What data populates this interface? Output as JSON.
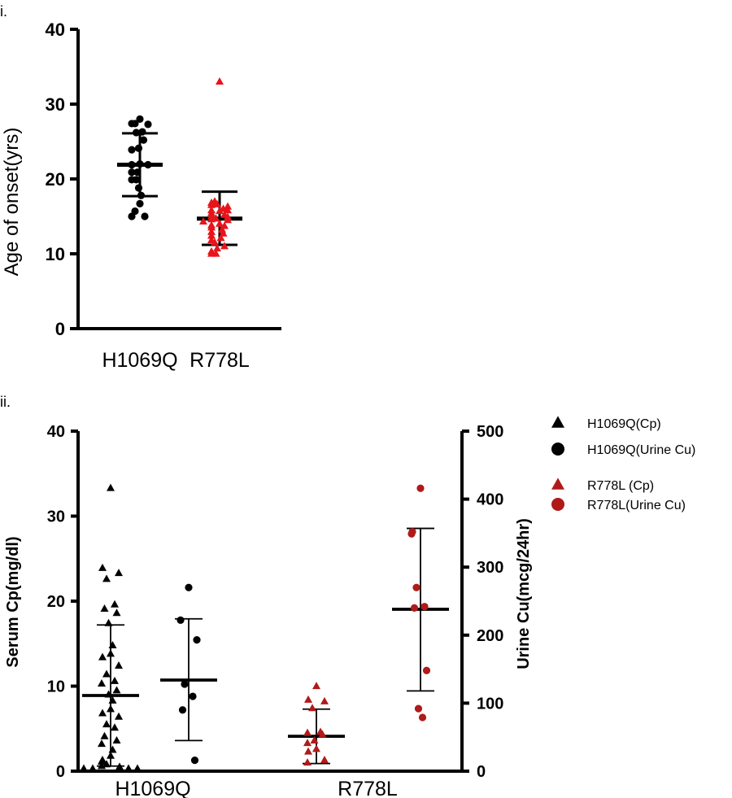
{
  "chart_data": [
    {
      "panel_label": "i.",
      "type": "scatter",
      "xlabel": "",
      "ylabel": "Age of onset(yrs)",
      "ylim": [
        0,
        40
      ],
      "yticks": [
        "0",
        "10",
        "20",
        "30",
        "40"
      ],
      "categories": [
        "H1069Q",
        "R778L"
      ],
      "grid": false,
      "series": [
        {
          "category": "H1069Q",
          "marker": "circle",
          "color": "#000000",
          "values": [
            28,
            27.4,
            27.4,
            27.3,
            26.3,
            26.2,
            25.2,
            24.1,
            23.9,
            22.0,
            21.9,
            21.9,
            20.9,
            20.9,
            19.9,
            19.9,
            18.8,
            17.8,
            16.7,
            15.7,
            15.0,
            15.0
          ],
          "mean": 21.9,
          "sd_low": 17.7,
          "sd_high": 26.1
        },
        {
          "category": "R778L",
          "marker": "triangle",
          "color": "#e8141b",
          "values": [
            33,
            17.0,
            16.8,
            16.6,
            16.5,
            16.3,
            16.0,
            15.8,
            15.8,
            15.7,
            15.4,
            15.2,
            15.0,
            14.9,
            14.7,
            14.6,
            14.5,
            14.3,
            14.0,
            13.8,
            13.7,
            13.5,
            13.2,
            12.9,
            12.7,
            12.4,
            12.1,
            11.8,
            11.5,
            11.0,
            10.7,
            10.3,
            10.0,
            10.0
          ],
          "mean": 14.7,
          "sd_low": 11.2,
          "sd_high": 18.3
        }
      ]
    },
    {
      "panel_label": "ii.",
      "type": "scatter",
      "xlabel": "",
      "ylabel": "Serum Cp(mg/dl)",
      "ylim": [
        0,
        40
      ],
      "yticks": [
        "0",
        "10",
        "20",
        "30",
        "40"
      ],
      "y2label": "Urine Cu(mcg/24hr)",
      "y2lim": [
        0,
        500
      ],
      "y2ticks": [
        "0",
        "100",
        "200",
        "300",
        "400",
        "500"
      ],
      "categories": [
        "H1069Q",
        "R778L"
      ],
      "grid": false,
      "legend_position": "right",
      "legend": [
        {
          "label": "H1069Q(Cp)",
          "marker": "triangle",
          "color": "#000000"
        },
        {
          "label": "H1069Q(Urine Cu)",
          "marker": "circle",
          "color": "#000000"
        },
        {
          "label": "R778L (Cp)",
          "marker": "triangle",
          "color": "#b01a1a"
        },
        {
          "label": "R778L(Urine Cu)",
          "marker": "circle",
          "color": "#b01a1a"
        }
      ],
      "series": [
        {
          "name": "H1069Q(Cp)",
          "category": "H1069Q",
          "axis": "left",
          "marker": "triangle",
          "color": "#000000",
          "values": [
            33.3,
            23.9,
            23.3,
            22.6,
            19.6,
            19.1,
            18.6,
            17.4,
            14.8,
            13.8,
            13.4,
            12.4,
            11.4,
            10.6,
            10.3,
            9.5,
            9.0,
            8.3,
            7.3,
            6.8,
            6.4,
            5.5,
            5.1,
            4.1,
            3.6,
            3.2,
            2.5,
            1.8,
            1.3,
            1.1,
            0.8,
            0.6,
            0.5,
            0.3,
            0.3,
            0.3,
            0.3
          ],
          "mean": 8.9,
          "sd_low": 0.6,
          "sd_high": 17.2
        },
        {
          "name": "H1069Q(Urine Cu)",
          "category": "H1069Q",
          "axis": "right",
          "marker": "circle",
          "color": "#000000",
          "values": [
            270,
            222,
            193,
            128,
            110,
            90,
            16
          ],
          "mean": 134,
          "sd_low": 45,
          "sd_high": 224
        },
        {
          "name": "R778L (Cp)",
          "category": "R778L",
          "axis": "left",
          "marker": "triangle",
          "color": "#b01a1a",
          "values": [
            10.0,
            8.4,
            8.2,
            7.4,
            4.6,
            4.5,
            4.3,
            3.6,
            3.3,
            2.6,
            2.3,
            1.3,
            1.0
          ],
          "mean": 4.1,
          "sd_low": 0.9,
          "sd_high": 7.3
        },
        {
          "name": "R778L(Urine Cu)",
          "category": "R778L",
          "axis": "right",
          "marker": "circle",
          "color": "#b01a1a",
          "values": [
            416,
            352,
            349,
            270,
            242,
            240,
            148,
            92,
            79
          ],
          "mean": 238,
          "sd_low": 118,
          "sd_high": 357
        }
      ]
    }
  ]
}
